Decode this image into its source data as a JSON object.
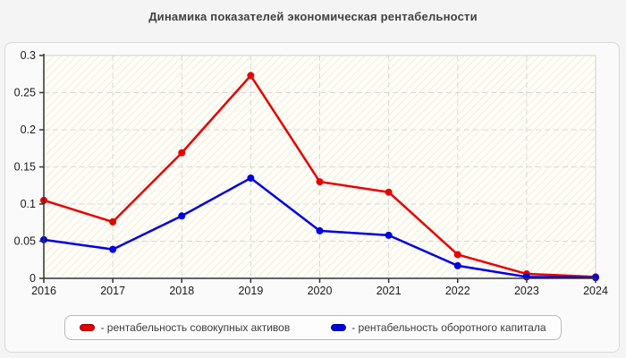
{
  "title": "Динамика показателей экономическая рентабельности",
  "colors": {
    "series_assets": "#e60000",
    "series_assets_border": "#990000",
    "series_working_capital": "#0000e0",
    "series_working_capital_border": "#000099",
    "grid": "#d8d8d8",
    "axis": "#333333",
    "plot_border": "#d0d0d0",
    "tick_text": "#1a1a1a"
  },
  "legend": {
    "items": [
      {
        "label": "- рентабельность совокупных активов",
        "color": "#e60000",
        "border": "#990000"
      },
      {
        "label": "- рентабельность оборотного капитала",
        "color": "#0000e0",
        "border": "#000099"
      }
    ]
  },
  "chart_data": {
    "type": "line",
    "title": "Динамика показателей экономическая рентабельности",
    "x": [
      2016,
      2017,
      2018,
      2019,
      2020,
      2021,
      2022,
      2023,
      2024
    ],
    "xtick_labels": [
      "2016",
      "2017",
      "2018",
      "2019",
      "2020",
      "2021",
      "2022",
      "2023",
      "2024"
    ],
    "series": [
      {
        "name": "рентабельность совокупных активов",
        "color": "#e60000",
        "values": [
          0.105,
          0.076,
          0.169,
          0.273,
          0.13,
          0.116,
          0.032,
          0.006,
          0.002
        ]
      },
      {
        "name": "рентабельность оборотного капитала",
        "color": "#0000e0",
        "values": [
          0.052,
          0.039,
          0.084,
          0.135,
          0.064,
          0.058,
          0.017,
          0.002,
          0.001
        ]
      }
    ],
    "xlabel": "",
    "ylabel": "",
    "ylim": [
      0,
      0.3
    ],
    "ytick_step": 0.05,
    "ytick_labels": [
      "0",
      "0.05",
      "0.1",
      "0.15",
      "0.2",
      "0.25",
      "0.3"
    ],
    "grid": true,
    "grid_style": "dashed",
    "legend_position": "bottom",
    "marker": "circle",
    "marker_radius": 4
  }
}
